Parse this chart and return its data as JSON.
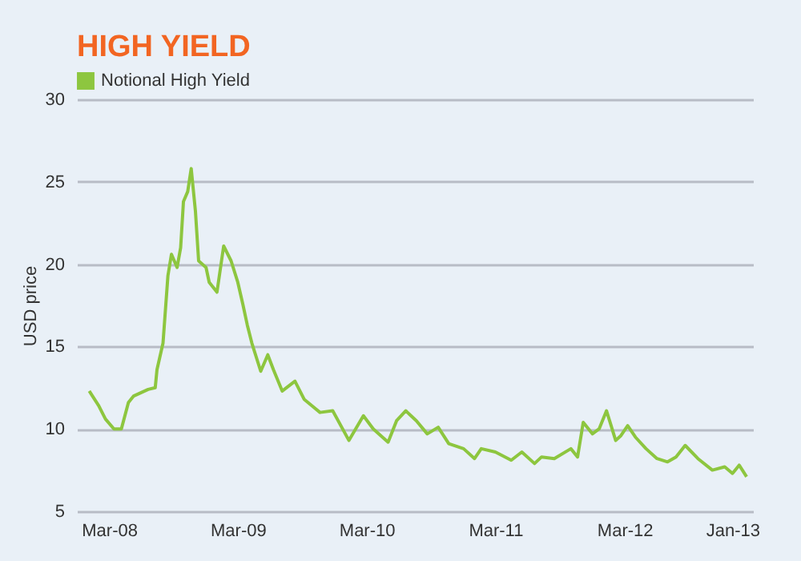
{
  "chart_data": {
    "type": "line",
    "title": "HIGH YIELD",
    "ylabel": "USD price",
    "x": [
      "2008-01-05",
      "2008-02-01",
      "2008-02-20",
      "2008-03-15",
      "2008-04-05",
      "2008-04-25",
      "2008-05-10",
      "2008-06-20",
      "2008-07-10",
      "2008-07-15",
      "2008-08-01",
      "2008-08-15",
      "2008-08-25",
      "2008-09-10",
      "2008-09-20",
      "2008-09-28",
      "2008-10-10",
      "2008-10-20",
      "2008-11-01",
      "2008-11-10",
      "2008-12-01",
      "2008-12-10",
      "2009-01-01",
      "2009-01-20",
      "2009-02-10",
      "2009-03-01",
      "2009-03-15",
      "2009-03-28",
      "2009-04-10",
      "2009-05-05",
      "2009-05-25",
      "2009-06-10",
      "2009-07-05",
      "2009-08-10",
      "2009-09-05",
      "2009-10-20",
      "2009-11-25",
      "2010-01-10",
      "2010-02-20",
      "2010-03-20",
      "2010-05-01",
      "2010-05-25",
      "2010-06-20",
      "2010-07-20",
      "2010-08-20",
      "2010-09-20",
      "2010-10-20",
      "2010-12-01",
      "2011-01-01",
      "2011-01-20",
      "2011-03-01",
      "2011-04-15",
      "2011-05-15",
      "2011-06-20",
      "2011-07-10",
      "2011-08-15",
      "2011-10-01",
      "2011-10-20",
      "2011-11-05",
      "2011-12-01",
      "2011-12-20",
      "2012-01-10",
      "2012-02-05",
      "2012-02-20",
      "2012-03-10",
      "2012-04-01",
      "2012-05-01",
      "2012-06-01",
      "2012-07-01",
      "2012-07-25",
      "2012-08-20",
      "2012-09-25",
      "2012-11-05",
      "2012-12-10",
      "2013-01-01",
      "2013-01-20",
      "2013-02-10"
    ],
    "series": [
      {
        "name": "Notional High Yield",
        "color": "#8dc63f",
        "values": [
          12.3,
          11.4,
          10.6,
          10.0,
          10.0,
          11.6,
          12.0,
          12.4,
          12.5,
          13.6,
          15.2,
          19.3,
          20.6,
          19.8,
          21.0,
          23.8,
          24.4,
          25.8,
          23.2,
          20.2,
          19.8,
          18.9,
          18.3,
          21.1,
          20.2,
          18.9,
          17.6,
          16.3,
          15.2,
          13.5,
          14.5,
          13.6,
          12.3,
          12.9,
          11.8,
          11.0,
          11.1,
          9.3,
          10.8,
          10.0,
          9.2,
          10.5,
          11.1,
          10.5,
          9.7,
          10.1,
          9.1,
          8.8,
          8.2,
          8.8,
          8.6,
          8.1,
          8.6,
          7.9,
          8.3,
          8.2,
          8.8,
          8.3,
          10.4,
          9.7,
          10.0,
          11.1,
          9.3,
          9.6,
          10.2,
          9.5,
          8.8,
          8.2,
          8.0,
          8.3,
          9.0,
          8.2,
          7.5,
          7.7,
          7.3,
          7.8,
          7.1
        ]
      }
    ],
    "xlim": [
      "2007-12-01",
      "2013-02-28"
    ],
    "xticks": [
      {
        "value": "2008-03",
        "label": "Mar-08"
      },
      {
        "value": "2009-03",
        "label": "Mar-09"
      },
      {
        "value": "2010-03",
        "label": "Mar-10"
      },
      {
        "value": "2011-03",
        "label": "Mar-11"
      },
      {
        "value": "2012-03",
        "label": "Mar-12"
      },
      {
        "value": "2013-01",
        "label": "Jan-13"
      }
    ],
    "ylim": [
      5,
      30
    ],
    "yticks": [
      5,
      10,
      15,
      20,
      25,
      30
    ],
    "grid": "y",
    "legend": "top left",
    "marker": "none",
    "line_style": "solid"
  }
}
